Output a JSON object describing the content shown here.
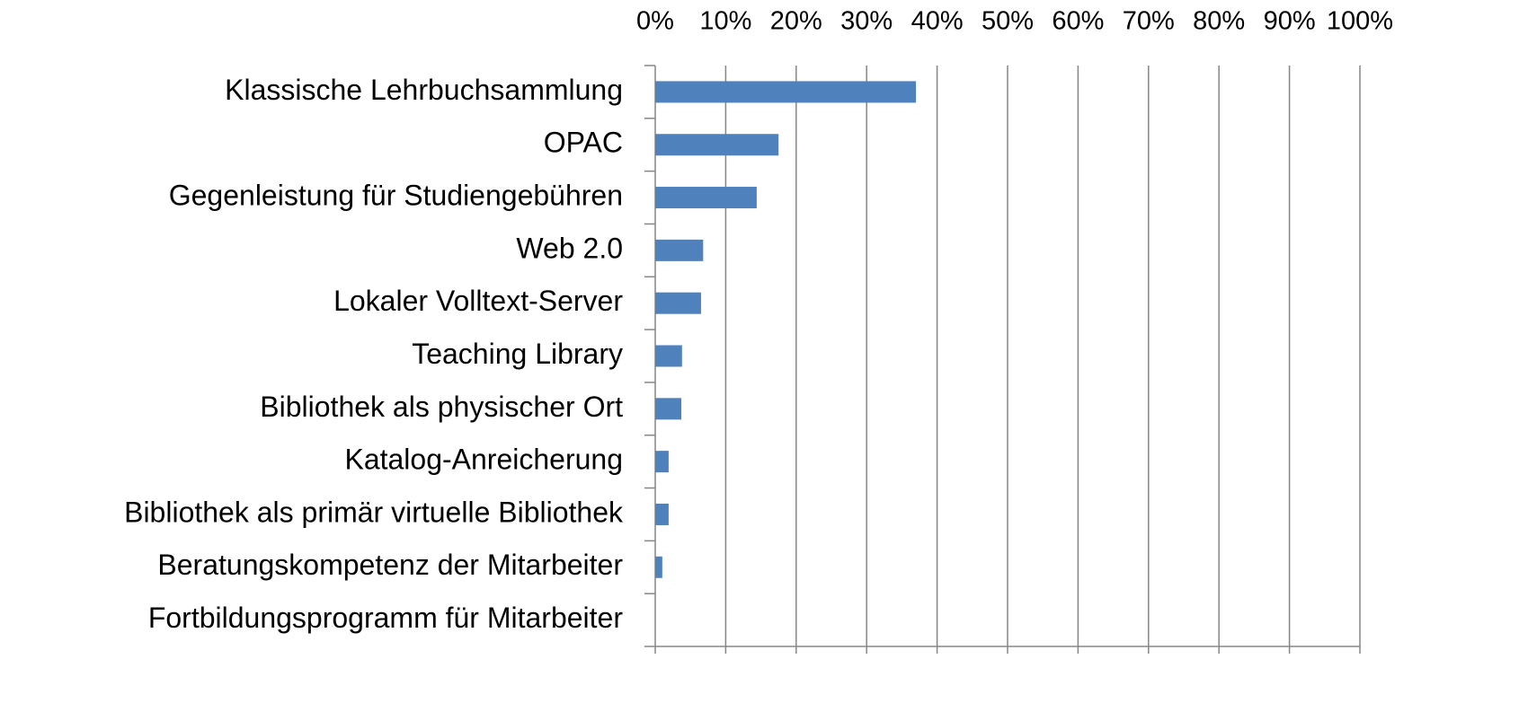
{
  "chart_data": {
    "type": "bar",
    "orientation": "horizontal",
    "categories": [
      "Klassische Lehrbuchsammlung",
      "OPAC",
      "Gegenleistung für Studiengebühren",
      "Web 2.0",
      "Lokaler Volltext-Server",
      "Teaching Library",
      "Bibliothek als physischer Ort",
      "Katalog-Anreicherung",
      "Bibliothek als primär virtuelle Bibliothek",
      "Beratungskompetenz der Mitarbeiter",
      "Fortbildungsprogramm für Mitarbeiter"
    ],
    "values": [
      37,
      17.5,
      14.4,
      6.8,
      6.5,
      3.8,
      3.7,
      1.9,
      1.9,
      1.0,
      0
    ],
    "color": "#4f81bd",
    "xlim": [
      0,
      100
    ],
    "xticks": [
      {
        "value": 0,
        "label": "0%"
      },
      {
        "value": 10,
        "label": "10%"
      },
      {
        "value": 20,
        "label": "20%"
      },
      {
        "value": 30,
        "label": "30%"
      },
      {
        "value": 40,
        "label": "40%"
      },
      {
        "value": 50,
        "label": "50%"
      },
      {
        "value": 60,
        "label": "60%"
      },
      {
        "value": 70,
        "label": "70%"
      },
      {
        "value": 80,
        "label": "80%"
      },
      {
        "value": 90,
        "label": "90%"
      },
      {
        "value": 100,
        "label": "100%"
      }
    ],
    "grid": true
  }
}
